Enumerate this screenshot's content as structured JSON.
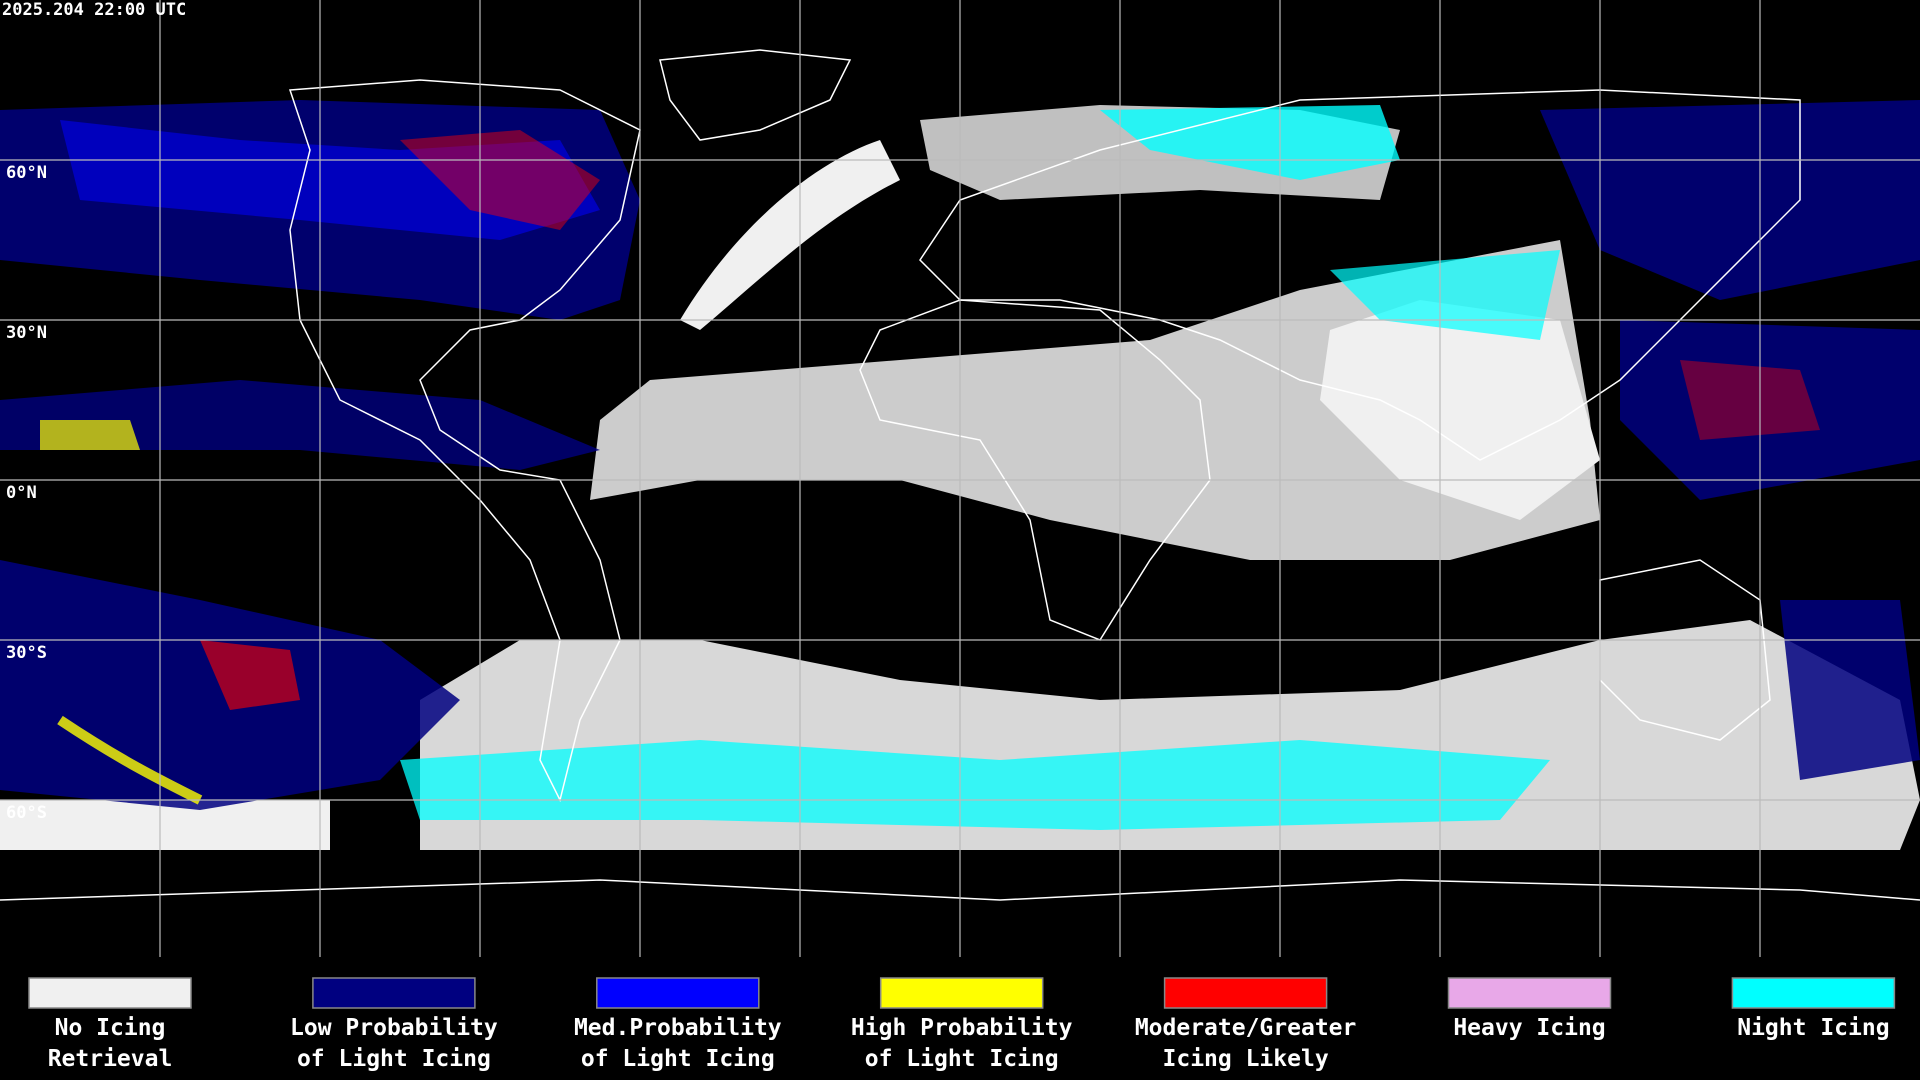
{
  "header": {
    "timestamp": "2025.204 22:00 UTC"
  },
  "map": {
    "lat_labels": [
      "60°N",
      "30°N",
      "0°N",
      "30°S",
      "60°S"
    ]
  },
  "legend": {
    "items": [
      {
        "lines": [
          "No Icing",
          "Retrieval"
        ],
        "color": "#f0f0f0"
      },
      {
        "lines": [
          "Low Probability",
          "of Light Icing"
        ],
        "color": "#000080"
      },
      {
        "lines": [
          "Med.Probability",
          "of Light Icing"
        ],
        "color": "#0000ff"
      },
      {
        "lines": [
          "High Probability",
          "of Light Icing"
        ],
        "color": "#ffff00"
      },
      {
        "lines": [
          "Moderate/Greater",
          "Icing Likely"
        ],
        "color": "#ff0000"
      },
      {
        "lines": [
          "Heavy Icing"
        ],
        "color": "#e8a8e8"
      },
      {
        "lines": [
          "Night Icing"
        ],
        "color": "#00ffff"
      }
    ]
  }
}
